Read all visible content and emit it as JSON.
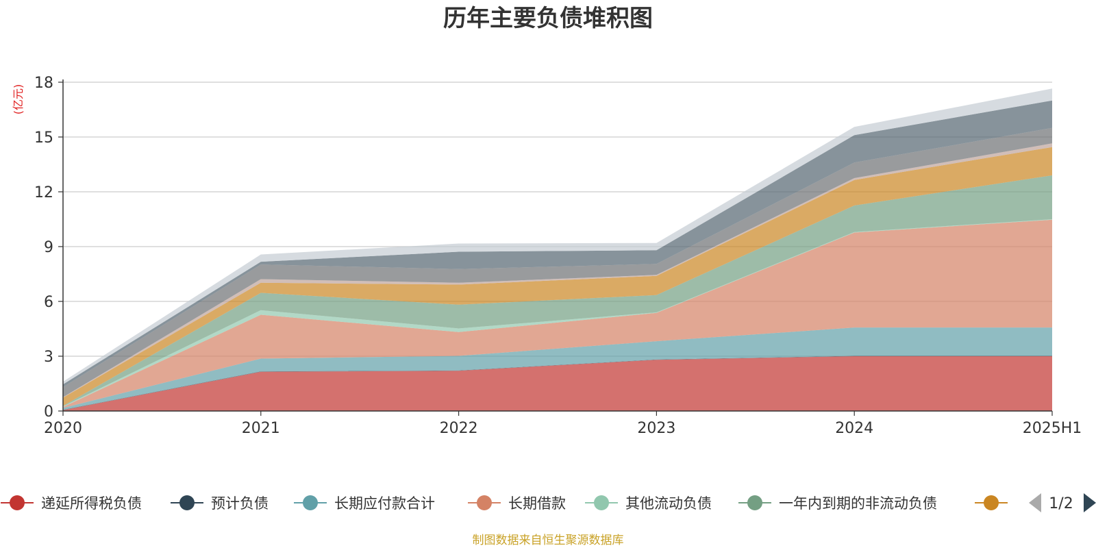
{
  "chart_data": {
    "type": "area",
    "stacked": true,
    "title": "历年主要负债堆积图",
    "unit": "(亿元)",
    "x": [
      "2020",
      "2021",
      "2022",
      "2023",
      "2024",
      "2025H1"
    ],
    "ylim": [
      0,
      18
    ],
    "yticks": [
      0,
      3,
      6,
      9,
      12,
      15,
      18
    ],
    "grid": true,
    "legend_position": "bottom",
    "series": [
      {
        "name": "递延所得税负债",
        "color": "#c23531",
        "values": [
          0.05,
          2.15,
          2.2,
          2.8,
          3.0,
          3.0
        ]
      },
      {
        "name": "预计负债",
        "color": "#2f4554",
        "values": [
          0.02,
          0.02,
          0.02,
          0.02,
          0.02,
          0.02
        ]
      },
      {
        "name": "长期应付款合计",
        "color": "#61a0a8",
        "values": [
          0.1,
          0.7,
          0.8,
          1.0,
          1.55,
          1.55
        ]
      },
      {
        "name": "长期借款",
        "color": "#d48265",
        "values": [
          0.05,
          2.4,
          1.3,
          1.55,
          5.2,
          5.9
        ]
      },
      {
        "name": "其他流动负债",
        "color": "#91c7ae",
        "values": [
          0.03,
          0.25,
          0.2,
          0.03,
          0.03,
          0.03
        ]
      },
      {
        "name": "一年内到期的非流动负债",
        "color": "#749f83",
        "values": [
          0.03,
          0.95,
          1.3,
          0.95,
          1.45,
          2.4
        ]
      },
      {
        "name": "",
        "color": "#ca8622",
        "values": [
          0.45,
          0.55,
          1.1,
          1.05,
          1.4,
          1.55
        ]
      },
      {
        "name": "",
        "color": "#bda29a",
        "values": [
          0.03,
          0.2,
          0.1,
          0.05,
          0.1,
          0.2
        ]
      },
      {
        "name": "",
        "color": "#6e7074",
        "values": [
          0.55,
          0.8,
          0.75,
          0.6,
          0.85,
          0.85
        ]
      },
      {
        "name": "",
        "color": "#546570",
        "values": [
          0.15,
          0.15,
          0.95,
          0.75,
          1.5,
          1.5
        ]
      },
      {
        "name": "",
        "color": "#c4ccd3",
        "values": [
          0.15,
          0.4,
          0.45,
          0.4,
          0.45,
          0.65
        ]
      }
    ],
    "legend": {
      "items": [
        "递延所得税负债",
        "预计负债",
        "长期应付款合计",
        "长期借款",
        "其他流动负债",
        "一年内到期的非流动负债",
        ""
      ],
      "page": "1/2"
    }
  },
  "footer": "制图数据来自恒生聚源数据库"
}
